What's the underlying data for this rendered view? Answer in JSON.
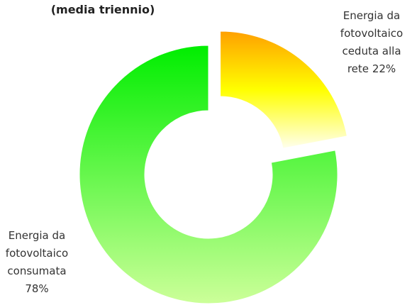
{
  "chart_data": {
    "type": "donut",
    "title": "(media triennio)",
    "categories": [
      "Energia da fotovoltaico ceduta alla rete",
      "Energia da fotovoltaico consumata"
    ],
    "values": [
      22,
      78
    ],
    "value_labels": [
      "22%",
      "78%"
    ],
    "colors": [
      [
        "#ffa000",
        "#ffff00",
        "#ffffee"
      ],
      [
        "#00ee00",
        "#ccff99"
      ]
    ]
  }
}
